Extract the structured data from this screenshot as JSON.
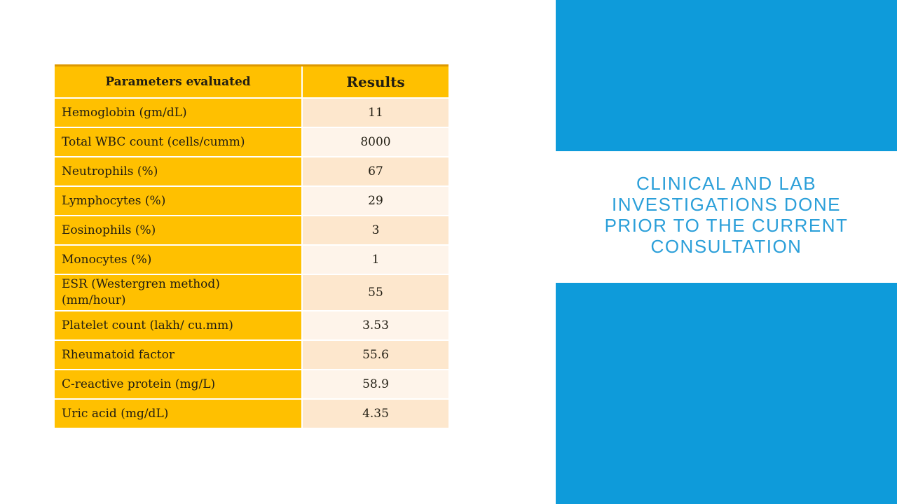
{
  "slide": {
    "title": "CLINICAL AND LAB\nINVESTIGATIONS DONE\nPRIOR TO THE CURRENT\nCONSULTATION"
  },
  "colors": {
    "accent_blue": "#0E9BDA",
    "title_blue": "#2B9FD9",
    "gold": "#FFC000",
    "gold_border": "#DD9800",
    "peach_dark": "#FDE7CD",
    "peach_light": "#FEF4EA",
    "text_dark": "#211D12"
  },
  "table": {
    "headers": [
      "Parameters evaluated",
      "Results"
    ],
    "rows": [
      {
        "parameter": "Hemoglobin (gm/dL)",
        "result": "11"
      },
      {
        "parameter": "Total WBC count (cells/cumm)",
        "result": "8000"
      },
      {
        "parameter": "Neutrophils (%)",
        "result": "67"
      },
      {
        "parameter": "Lymphocytes (%)",
        "result": "29"
      },
      {
        "parameter": "Eosinophils (%)",
        "result": "3"
      },
      {
        "parameter": "Monocytes (%)",
        "result": "1"
      },
      {
        "parameter": "ESR (Westergren method)\n(mm/hour)",
        "result": "55"
      },
      {
        "parameter": "Platelet count (lakh/ cu.mm)",
        "result": "3.53"
      },
      {
        "parameter": "Rheumatoid factor",
        "result": "55.6"
      },
      {
        "parameter": "C-reactive protein (mg/L)",
        "result": "58.9"
      },
      {
        "parameter": "Uric acid (mg/dL)",
        "result": "4.35"
      }
    ]
  }
}
